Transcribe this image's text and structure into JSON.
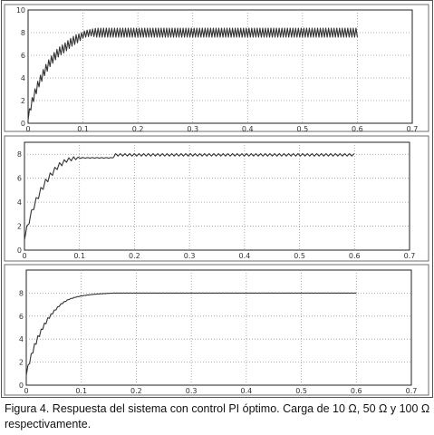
{
  "caption": "Figura 4. Respuesta del sistema con control PI óptimo. Carga de 10 Ω, 50 Ω y 100 Ω respectivamente.",
  "chart_data": [
    {
      "type": "line",
      "title": "",
      "xlabel": "",
      "ylabel": "",
      "xlim": [
        0,
        0.7
      ],
      "ylim": [
        0,
        10
      ],
      "grid": true,
      "x_ticks": [
        "0",
        "0.1",
        "0.2",
        "0.3",
        "0.4",
        "0.5",
        "0.6",
        "0.7"
      ],
      "y_ticks": [
        "0",
        "2",
        "4",
        "6",
        "8",
        "10"
      ],
      "series": [
        {
          "x": [
            0,
            0.005,
            0.01,
            0.015,
            0.02,
            0.025,
            0.03,
            0.035,
            0.04,
            0.045,
            0.05,
            0.055,
            0.06,
            0.065,
            0.07,
            0.075,
            0.08,
            0.085,
            0.09,
            0.095,
            0.1,
            0.105,
            0.11,
            0.115,
            0.12,
            0.125,
            0.13,
            0.14,
            0.15,
            0.2,
            0.3,
            0.4,
            0.5,
            0.6
          ],
          "y": [
            0.5,
            1.5,
            2.3,
            3.0,
            3.6,
            4.1,
            4.6,
            5.0,
            5.4,
            5.7,
            6.0,
            6.25,
            6.45,
            6.6,
            6.8,
            7.0,
            7.2,
            7.35,
            7.5,
            7.6,
            7.8,
            7.9,
            7.95,
            8.0,
            8.0,
            8.0,
            8.0,
            8.0,
            8.0,
            8.0,
            8.0,
            8.0,
            8.0,
            8.0
          ],
          "ripple_amplitude": [
            0.4,
            0.7,
            0.8,
            0.8,
            0.8,
            0.8,
            0.8,
            0.8,
            0.8,
            0.8,
            0.8,
            0.8,
            0.8,
            0.8,
            0.8,
            0.8,
            0.8,
            0.8,
            0.8,
            0.6,
            0.6,
            0.6,
            0.6,
            0.6,
            0.7,
            0.8,
            0.8,
            0.8,
            0.8,
            0.8,
            0.8,
            0.8,
            0.8,
            0.8
          ],
          "ripple_period": 0.005
        }
      ]
    },
    {
      "type": "line",
      "title": "",
      "xlabel": "",
      "ylabel": "",
      "xlim": [
        0,
        0.7
      ],
      "ylim": [
        0,
        9
      ],
      "grid": true,
      "x_ticks": [
        "0",
        "0.1",
        "0.2",
        "0.3",
        "0.4",
        "0.5",
        "0.6",
        "0.7"
      ],
      "y_ticks": [
        "0",
        "2",
        "4",
        "6",
        "8"
      ],
      "series": [
        {
          "x": [
            0,
            0.005,
            0.01,
            0.015,
            0.02,
            0.025,
            0.03,
            0.035,
            0.04,
            0.045,
            0.05,
            0.055,
            0.06,
            0.065,
            0.07,
            0.075,
            0.08,
            0.085,
            0.09,
            0.1,
            0.11,
            0.12,
            0.13,
            0.14,
            0.15,
            0.16,
            0.165,
            0.2,
            0.3,
            0.4,
            0.5,
            0.6
          ],
          "y": [
            1.0,
            1.9,
            2.7,
            3.4,
            4.0,
            4.5,
            5.0,
            5.4,
            5.8,
            6.1,
            6.4,
            6.7,
            6.95,
            7.15,
            7.3,
            7.45,
            7.55,
            7.6,
            7.65,
            7.7,
            7.7,
            7.7,
            7.7,
            7.7,
            7.7,
            7.7,
            7.95,
            7.95,
            7.95,
            7.95,
            7.95,
            7.95
          ],
          "ripple_amplitude": [
            0.3,
            0.5,
            0.5,
            0.5,
            0.5,
            0.5,
            0.5,
            0.5,
            0.5,
            0.5,
            0.45,
            0.4,
            0.4,
            0.4,
            0.4,
            0.3,
            0.3,
            0.3,
            0.3,
            0.1,
            0.05,
            0.05,
            0.05,
            0.05,
            0.05,
            0.05,
            0.2,
            0.2,
            0.2,
            0.2,
            0.2,
            0.2
          ],
          "ripple_period": 0.0085
        }
      ]
    },
    {
      "type": "line",
      "title": "",
      "xlabel": "",
      "ylabel": "",
      "xlim": [
        0,
        0.7
      ],
      "ylim": [
        0,
        10
      ],
      "grid": true,
      "x_ticks": [
        "0",
        "0.1",
        "0.2",
        "0.3",
        "0.4",
        "0.5",
        "0.6",
        "0.7"
      ],
      "y_ticks": [
        "0",
        "2",
        "4",
        "6",
        "8"
      ],
      "series": [
        {
          "x": [
            0,
            0.005,
            0.01,
            0.015,
            0.02,
            0.025,
            0.03,
            0.035,
            0.04,
            0.045,
            0.05,
            0.055,
            0.06,
            0.065,
            0.07,
            0.075,
            0.08,
            0.09,
            0.1,
            0.11,
            0.12,
            0.13,
            0.14,
            0.15,
            0.16,
            0.2,
            0.3,
            0.4,
            0.5,
            0.6
          ],
          "y": [
            1.0,
            1.9,
            2.7,
            3.4,
            4.0,
            4.5,
            5.0,
            5.4,
            5.8,
            6.1,
            6.4,
            6.65,
            6.9,
            7.1,
            7.25,
            7.4,
            7.5,
            7.65,
            7.75,
            7.82,
            7.88,
            7.92,
            7.95,
            7.98,
            8.0,
            8.0,
            8.0,
            8.0,
            8.0,
            8.0
          ],
          "ripple_amplitude": [
            0.3,
            0.4,
            0.4,
            0.4,
            0.4,
            0.35,
            0.3,
            0.3,
            0.25,
            0.2,
            0.15,
            0.15,
            0.1,
            0.1,
            0.1,
            0.05,
            0.05,
            0.04,
            0.03,
            0.03,
            0.02,
            0.02,
            0.02,
            0.02,
            0.02,
            0.02,
            0.02,
            0.02,
            0.02,
            0.02
          ],
          "ripple_period": 0.006
        }
      ]
    }
  ]
}
